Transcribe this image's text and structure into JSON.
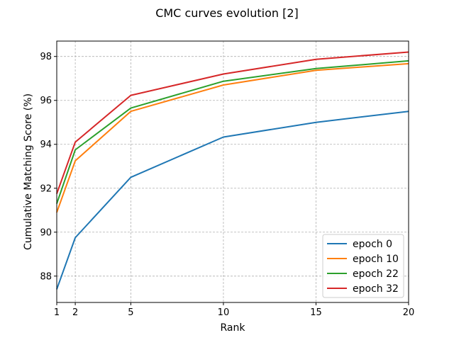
{
  "chart_data": {
    "type": "line",
    "title": "CMC curves evolution [2]",
    "xlabel": "Rank",
    "ylabel": "Cumulative Matching Score (%)",
    "x": [
      1,
      2,
      5,
      10,
      15,
      20
    ],
    "xticks": [
      1,
      2,
      5,
      10,
      15,
      20
    ],
    "yticks": [
      88,
      90,
      92,
      94,
      96,
      98
    ],
    "xlim": [
      1,
      20
    ],
    "ylim": [
      86.8,
      98.7
    ],
    "grid": true,
    "legend_position": "lower-right",
    "series": [
      {
        "name": "epoch 0",
        "color": "#1f77b4",
        "values": [
          87.4,
          89.75,
          92.5,
          94.33,
          95.0,
          95.5
        ]
      },
      {
        "name": "epoch 10",
        "color": "#ff7f0e",
        "values": [
          90.9,
          93.25,
          95.5,
          96.7,
          97.37,
          97.67
        ]
      },
      {
        "name": "epoch 22",
        "color": "#2ca02c",
        "values": [
          91.3,
          93.75,
          95.65,
          96.87,
          97.45,
          97.8
        ]
      },
      {
        "name": "epoch 32",
        "color": "#d62728",
        "values": [
          91.75,
          94.1,
          96.23,
          97.2,
          97.87,
          98.2
        ]
      }
    ]
  }
}
